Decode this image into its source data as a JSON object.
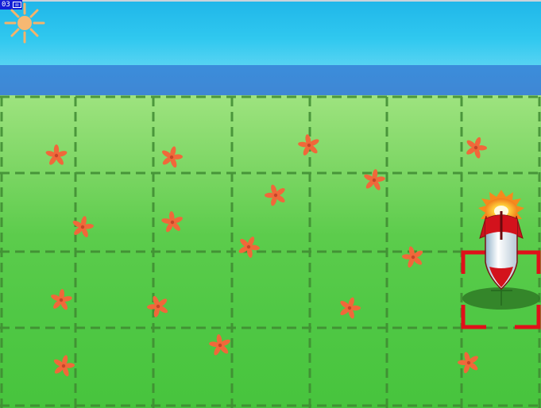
{
  "hud": {
    "counter": "03",
    "icon": "mail-icon"
  },
  "scene": {
    "sky_color": "#2fbfe9",
    "sea_color": "#3c8bd8",
    "grass_color": "#5ccc4c",
    "grid_line_color": "#3f8a32",
    "cursor_color": "#e0101a",
    "flower_color": "#f0683a"
  },
  "grid": {
    "columns": 7,
    "rows": 4,
    "cursor_cell": {
      "column": 7,
      "row": 3
    }
  },
  "player": {
    "type": "rocket-ship",
    "state": "boosting"
  }
}
